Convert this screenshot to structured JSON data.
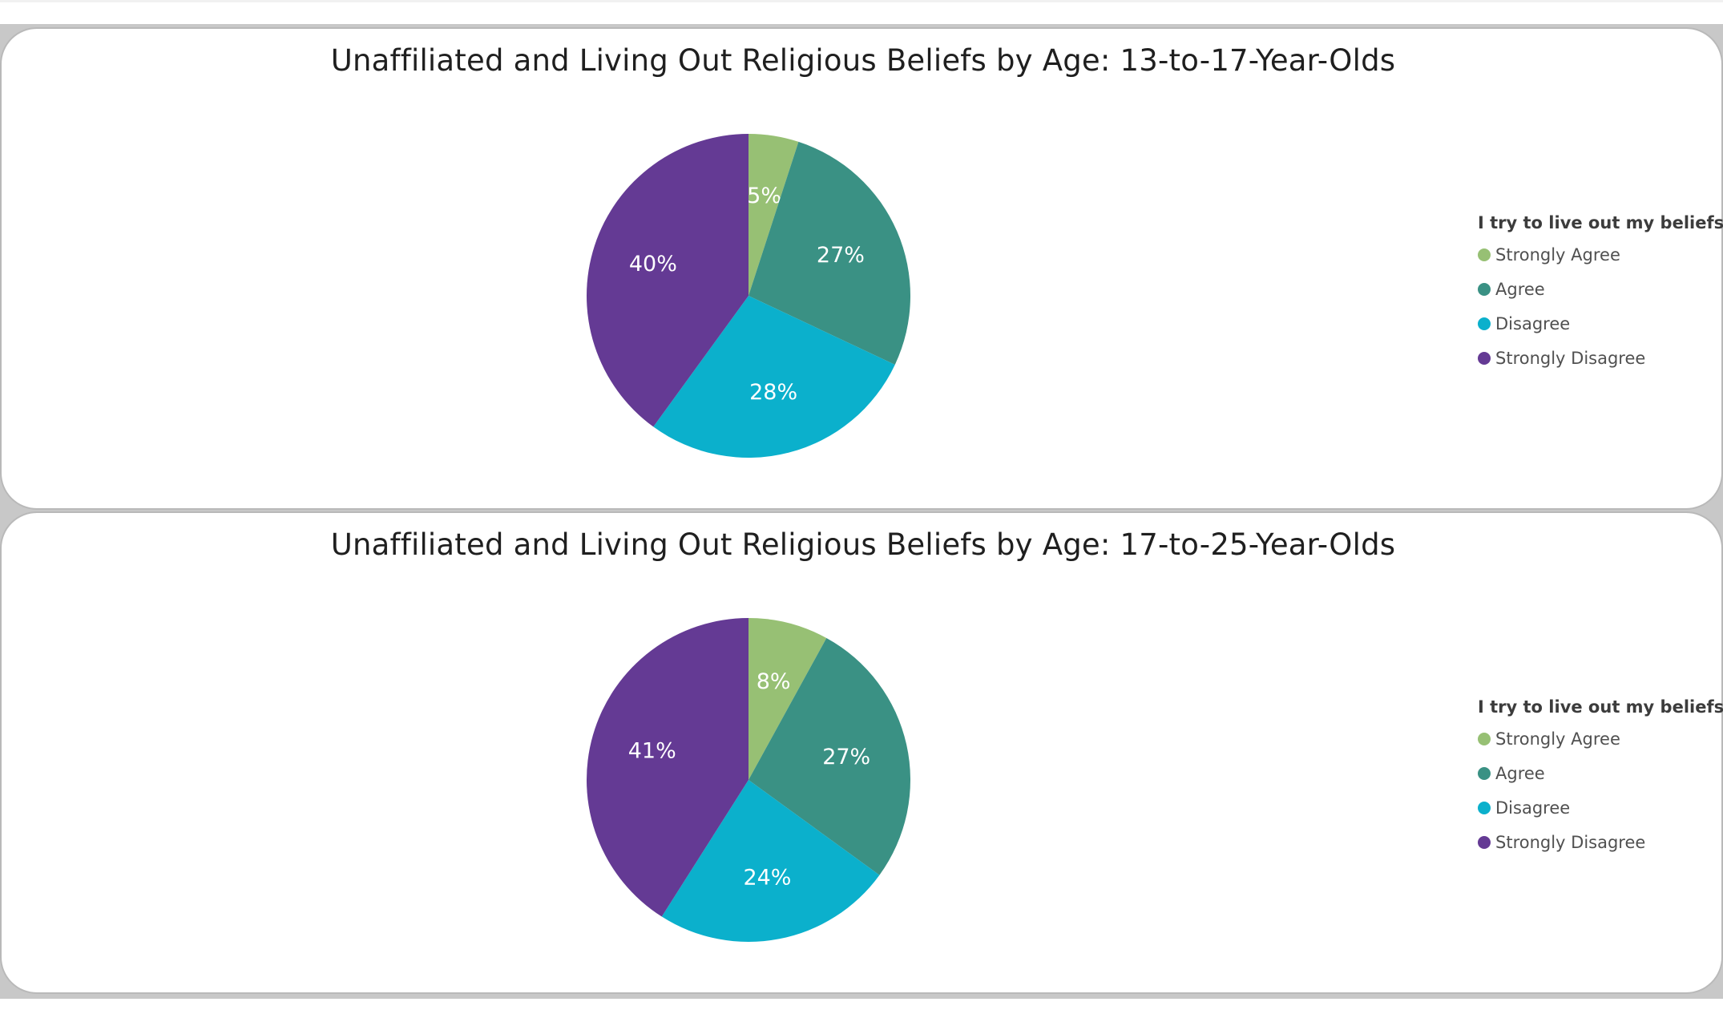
{
  "chart_data": [
    {
      "type": "pie",
      "title": "Unaffiliated and Living Out Religious Beliefs by Age: 13-to-17-Year-Olds",
      "legend_title": "I try to live out my beliefs",
      "legend_position": "right",
      "categories": [
        "Strongly Agree",
        "Agree",
        "Disagree",
        "Strongly Disagree"
      ],
      "values": [
        5,
        27,
        28,
        40
      ],
      "data_labels": [
        "5%",
        "27%",
        "28%",
        "40%"
      ],
      "colors": [
        "#97c074",
        "#3a9184",
        "#0bb0cc",
        "#643a94"
      ]
    },
    {
      "type": "pie",
      "title": "Unaffiliated and Living Out Religious Beliefs by Age: 17-to-25-Year-Olds",
      "legend_title": "I try to live out my beliefs",
      "legend_position": "right",
      "categories": [
        "Strongly Agree",
        "Agree",
        "Disagree",
        "Strongly Disagree"
      ],
      "values": [
        8,
        27,
        24,
        41
      ],
      "data_labels": [
        "8%",
        "27%",
        "24%",
        "41%"
      ],
      "colors": [
        "#97c074",
        "#3a9184",
        "#0bb0cc",
        "#643a94"
      ]
    }
  ]
}
